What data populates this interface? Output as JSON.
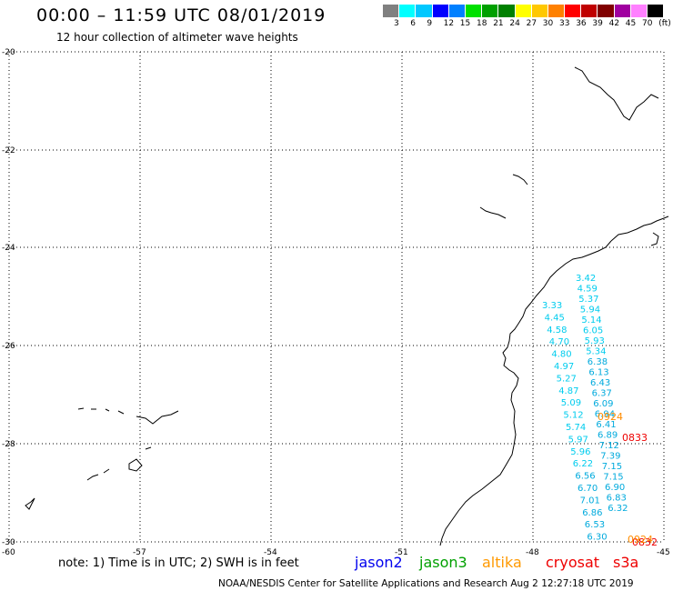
{
  "title": "00:00 – 11:59 UTC 08/01/2019",
  "subtitle": "12 hour collection of altimeter wave heights",
  "colorbar": {
    "colors": [
      "#808080",
      "#00ffff",
      "#00c8ff",
      "#0000ff",
      "#0080ff",
      "#00e000",
      "#00a000",
      "#008000",
      "#ffff00",
      "#ffc800",
      "#ff8000",
      "#ff0000",
      "#c00000",
      "#800000",
      "#a000a0",
      "#ff80ff",
      "#000000"
    ],
    "labels": [
      "3",
      "6",
      "9",
      "12",
      "15",
      "18",
      "21",
      "24",
      "27",
      "30",
      "33",
      "36",
      "39",
      "42",
      "45",
      "70",
      "(ft)"
    ]
  },
  "map": {
    "lat_labels": [
      "-20",
      "-22",
      "-24",
      "-26",
      "-28",
      "-30"
    ],
    "lon_labels": [
      "-60",
      "-57",
      "-54",
      "-51",
      "-48",
      "-45"
    ]
  },
  "swh_readings": [
    {
      "t": "3.42",
      "c": "#00ccee"
    },
    {
      "t": "4.59",
      "c": "#00ccee"
    },
    {
      "t": "5.37",
      "c": "#00ccee"
    },
    {
      "t": "5.94",
      "c": "#00ccee"
    },
    {
      "t": "5.14",
      "c": "#00ccee"
    },
    {
      "t": "6.05",
      "c": "#00ccee"
    },
    {
      "t": "5.93",
      "c": "#00ccee"
    },
    {
      "t": "5.34",
      "c": "#00ccee"
    },
    {
      "t": "6.38",
      "c": "#00aadd"
    },
    {
      "t": "6.13",
      "c": "#00aadd"
    },
    {
      "t": "6.43",
      "c": "#00aadd"
    },
    {
      "t": "6.37",
      "c": "#00aadd"
    },
    {
      "t": "6.09",
      "c": "#00aadd"
    },
    {
      "t": "6.94",
      "c": "#00aadd"
    },
    {
      "t": "6.41",
      "c": "#00aadd"
    },
    {
      "t": "6.89",
      "c": "#00aadd"
    },
    {
      "t": "7.12",
      "c": "#00aadd"
    },
    {
      "t": "7.39",
      "c": "#00aadd"
    },
    {
      "t": "7.15",
      "c": "#00aadd"
    },
    {
      "t": "7.15",
      "c": "#00aadd"
    },
    {
      "t": "6.90",
      "c": "#00aadd"
    },
    {
      "t": "6.83",
      "c": "#00aadd"
    },
    {
      "t": "6.32",
      "c": "#00aadd"
    },
    {
      "t": "3.33",
      "c": "#00ccee"
    },
    {
      "t": "4.45",
      "c": "#00ccee"
    },
    {
      "t": "4.58",
      "c": "#00ccee"
    },
    {
      "t": "4.70",
      "c": "#00ccee"
    },
    {
      "t": "4.80",
      "c": "#00ccee"
    },
    {
      "t": "4.97",
      "c": "#00ccee"
    },
    {
      "t": "5.27",
      "c": "#00ccee"
    },
    {
      "t": "4.87",
      "c": "#00ccee"
    },
    {
      "t": "5.09",
      "c": "#00ccee"
    },
    {
      "t": "5.12",
      "c": "#00ccee"
    },
    {
      "t": "5.74",
      "c": "#00ccee"
    },
    {
      "t": "5.97",
      "c": "#00ccee"
    },
    {
      "t": "5.96",
      "c": "#00ccee"
    },
    {
      "t": "6.22",
      "c": "#00ccee"
    },
    {
      "t": "6.56",
      "c": "#00aadd"
    },
    {
      "t": "6.70",
      "c": "#00aadd"
    },
    {
      "t": "7.01",
      "c": "#00aadd"
    },
    {
      "t": "6.86",
      "c": "#00aadd"
    },
    {
      "t": "6.53",
      "c": "#00aadd"
    },
    {
      "t": "6.30",
      "c": "#00aadd"
    }
  ],
  "pass_times": [
    {
      "t": "0924",
      "c": "#ff8c00"
    },
    {
      "t": "0833",
      "c": "#ee0000"
    },
    {
      "t": "0832",
      "c": "#ee0000"
    },
    {
      "t": "0924",
      "c": "#ff8c00"
    }
  ],
  "note": "note: 1) Time is in UTC; 2) SWH is in feet",
  "satellites": [
    {
      "name": "jason2",
      "color": "#0000ee"
    },
    {
      "name": "jason3",
      "color": "#00a000"
    },
    {
      "name": "altika",
      "color": "#ff9900"
    },
    {
      "name": "cryosat",
      "color": "#ee0000"
    },
    {
      "name": "s3a",
      "color": "#ee0000"
    }
  ],
  "footer": "NOAA/NESDIS Center for Satellite Applications and Research   Aug  2 12:27:18 UTC 2019"
}
